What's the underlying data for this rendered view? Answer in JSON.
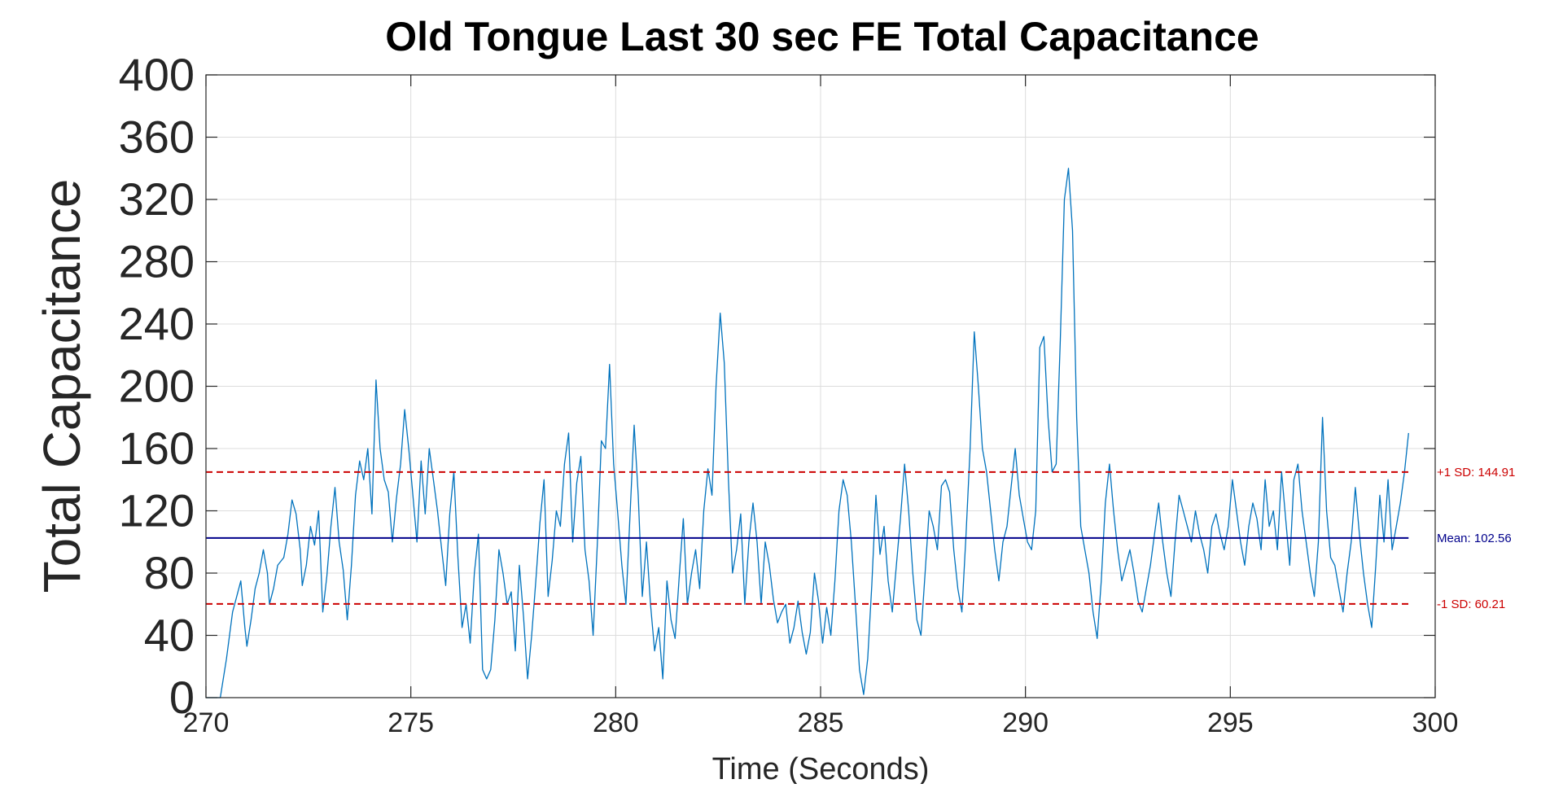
{
  "chart_data": {
    "type": "line",
    "title": "Old Tongue Last 30 sec FE Total Capacitance",
    "xlabel": "Time (Seconds)",
    "ylabel": "Total Capacitance",
    "xlim": [
      270,
      300
    ],
    "ylim": [
      0,
      400
    ],
    "xticks": [
      270,
      275,
      280,
      285,
      290,
      295,
      300
    ],
    "yticks": [
      0,
      40,
      80,
      120,
      160,
      200,
      240,
      280,
      320,
      360,
      400
    ],
    "grid": true,
    "series": [
      {
        "color": "#0072bd",
        "points": [
          [
            270.0,
            0
          ],
          [
            270.35,
            0
          ],
          [
            270.5,
            25
          ],
          [
            270.65,
            55
          ],
          [
            270.75,
            65
          ],
          [
            270.85,
            75
          ],
          [
            270.9,
            60
          ],
          [
            270.95,
            45
          ],
          [
            271.0,
            33
          ],
          [
            271.1,
            50
          ],
          [
            271.2,
            70
          ],
          [
            271.3,
            80
          ],
          [
            271.4,
            95
          ],
          [
            271.5,
            80
          ],
          [
            271.55,
            60
          ],
          [
            271.65,
            70
          ],
          [
            271.75,
            85
          ],
          [
            271.9,
            90
          ],
          [
            272.0,
            105
          ],
          [
            272.1,
            127
          ],
          [
            272.2,
            118
          ],
          [
            272.3,
            95
          ],
          [
            272.35,
            72
          ],
          [
            272.45,
            85
          ],
          [
            272.55,
            110
          ],
          [
            272.65,
            98
          ],
          [
            272.75,
            120
          ],
          [
            272.85,
            55
          ],
          [
            272.95,
            78
          ],
          [
            273.05,
            110
          ],
          [
            273.15,
            135
          ],
          [
            273.25,
            100
          ],
          [
            273.35,
            82
          ],
          [
            273.45,
            50
          ],
          [
            273.55,
            85
          ],
          [
            273.65,
            130
          ],
          [
            273.75,
            152
          ],
          [
            273.85,
            140
          ],
          [
            273.95,
            160
          ],
          [
            274.05,
            118
          ],
          [
            274.15,
            204
          ],
          [
            274.25,
            160
          ],
          [
            274.35,
            140
          ],
          [
            274.45,
            132
          ],
          [
            274.55,
            100
          ],
          [
            274.65,
            128
          ],
          [
            274.75,
            150
          ],
          [
            274.85,
            185
          ],
          [
            274.95,
            160
          ],
          [
            275.05,
            130
          ],
          [
            275.15,
            100
          ],
          [
            275.25,
            152
          ],
          [
            275.35,
            118
          ],
          [
            275.45,
            160
          ],
          [
            275.55,
            140
          ],
          [
            275.65,
            120
          ],
          [
            275.75,
            96
          ],
          [
            275.85,
            72
          ],
          [
            275.95,
            118
          ],
          [
            276.05,
            145
          ],
          [
            276.15,
            90
          ],
          [
            276.25,
            45
          ],
          [
            276.35,
            60
          ],
          [
            276.45,
            35
          ],
          [
            276.55,
            80
          ],
          [
            276.65,
            105
          ],
          [
            276.75,
            18
          ],
          [
            276.85,
            12
          ],
          [
            276.95,
            18
          ],
          [
            277.05,
            50
          ],
          [
            277.15,
            95
          ],
          [
            277.25,
            80
          ],
          [
            277.35,
            60
          ],
          [
            277.45,
            68
          ],
          [
            277.55,
            30
          ],
          [
            277.65,
            85
          ],
          [
            277.75,
            52
          ],
          [
            277.85,
            12
          ],
          [
            277.95,
            40
          ],
          [
            278.05,
            75
          ],
          [
            278.15,
            112
          ],
          [
            278.25,
            140
          ],
          [
            278.35,
            65
          ],
          [
            278.45,
            88
          ],
          [
            278.55,
            120
          ],
          [
            278.65,
            110
          ],
          [
            278.75,
            150
          ],
          [
            278.85,
            170
          ],
          [
            278.95,
            100
          ],
          [
            279.05,
            138
          ],
          [
            279.15,
            155
          ],
          [
            279.25,
            95
          ],
          [
            279.35,
            75
          ],
          [
            279.45,
            40
          ],
          [
            279.55,
            98
          ],
          [
            279.65,
            165
          ],
          [
            279.75,
            160
          ],
          [
            279.85,
            214
          ],
          [
            279.95,
            150
          ],
          [
            280.05,
            118
          ],
          [
            280.15,
            85
          ],
          [
            280.25,
            60
          ],
          [
            280.35,
            118
          ],
          [
            280.45,
            175
          ],
          [
            280.55,
            130
          ],
          [
            280.65,
            65
          ],
          [
            280.75,
            100
          ],
          [
            280.85,
            60
          ],
          [
            280.95,
            30
          ],
          [
            281.05,
            45
          ],
          [
            281.15,
            12
          ],
          [
            281.25,
            75
          ],
          [
            281.35,
            50
          ],
          [
            281.45,
            38
          ],
          [
            281.55,
            78
          ],
          [
            281.65,
            115
          ],
          [
            281.75,
            60
          ],
          [
            281.85,
            80
          ],
          [
            281.95,
            95
          ],
          [
            282.05,
            70
          ],
          [
            282.15,
            120
          ],
          [
            282.25,
            147
          ],
          [
            282.35,
            130
          ],
          [
            282.45,
            200
          ],
          [
            282.55,
            247
          ],
          [
            282.65,
            215
          ],
          [
            282.75,
            140
          ],
          [
            282.85,
            80
          ],
          [
            282.95,
            95
          ],
          [
            283.05,
            118
          ],
          [
            283.15,
            60
          ],
          [
            283.25,
            100
          ],
          [
            283.35,
            125
          ],
          [
            283.45,
            100
          ],
          [
            283.55,
            60
          ],
          [
            283.65,
            100
          ],
          [
            283.75,
            85
          ],
          [
            283.85,
            63
          ],
          [
            283.95,
            48
          ],
          [
            284.05,
            55
          ],
          [
            284.15,
            60
          ],
          [
            284.25,
            35
          ],
          [
            284.35,
            45
          ],
          [
            284.45,
            62
          ],
          [
            284.55,
            42
          ],
          [
            284.65,
            28
          ],
          [
            284.75,
            42
          ],
          [
            284.85,
            80
          ],
          [
            284.95,
            62
          ],
          [
            285.05,
            35
          ],
          [
            285.15,
            58
          ],
          [
            285.25,
            40
          ],
          [
            285.35,
            75
          ],
          [
            285.45,
            120
          ],
          [
            285.55,
            140
          ],
          [
            285.65,
            130
          ],
          [
            285.75,
            100
          ],
          [
            285.85,
            60
          ],
          [
            285.95,
            18
          ],
          [
            286.05,
            2
          ],
          [
            286.15,
            25
          ],
          [
            286.25,
            72
          ],
          [
            286.35,
            130
          ],
          [
            286.45,
            92
          ],
          [
            286.55,
            110
          ],
          [
            286.65,
            75
          ],
          [
            286.75,
            55
          ],
          [
            286.85,
            85
          ],
          [
            286.95,
            115
          ],
          [
            287.05,
            150
          ],
          [
            287.15,
            120
          ],
          [
            287.25,
            80
          ],
          [
            287.35,
            50
          ],
          [
            287.45,
            40
          ],
          [
            287.55,
            80
          ],
          [
            287.65,
            120
          ],
          [
            287.75,
            110
          ],
          [
            287.85,
            95
          ],
          [
            287.95,
            136
          ],
          [
            288.05,
            140
          ],
          [
            288.15,
            132
          ],
          [
            288.25,
            95
          ],
          [
            288.35,
            70
          ],
          [
            288.45,
            55
          ],
          [
            288.55,
            105
          ],
          [
            288.65,
            160
          ],
          [
            288.75,
            235
          ],
          [
            288.85,
            200
          ],
          [
            288.95,
            160
          ],
          [
            289.05,
            145
          ],
          [
            289.15,
            120
          ],
          [
            289.25,
            95
          ],
          [
            289.35,
            75
          ],
          [
            289.45,
            100
          ],
          [
            289.55,
            110
          ],
          [
            289.65,
            135
          ],
          [
            289.75,
            160
          ],
          [
            289.85,
            130
          ],
          [
            289.95,
            115
          ],
          [
            290.05,
            100
          ],
          [
            290.15,
            95
          ],
          [
            290.25,
            120
          ],
          [
            290.35,
            225
          ],
          [
            290.45,
            232
          ],
          [
            290.55,
            180
          ],
          [
            290.65,
            145
          ],
          [
            290.75,
            150
          ],
          [
            290.85,
            230
          ],
          [
            290.95,
            320
          ],
          [
            291.05,
            340
          ],
          [
            291.15,
            300
          ],
          [
            291.25,
            180
          ],
          [
            291.35,
            110
          ],
          [
            291.45,
            95
          ],
          [
            291.55,
            80
          ],
          [
            291.65,
            55
          ],
          [
            291.75,
            38
          ],
          [
            291.85,
            75
          ],
          [
            291.95,
            125
          ],
          [
            292.05,
            150
          ],
          [
            292.15,
            120
          ],
          [
            292.25,
            95
          ],
          [
            292.35,
            75
          ],
          [
            292.45,
            85
          ],
          [
            292.55,
            95
          ],
          [
            292.65,
            80
          ],
          [
            292.75,
            62
          ],
          [
            292.85,
            55
          ],
          [
            292.95,
            70
          ],
          [
            293.05,
            85
          ],
          [
            293.15,
            105
          ],
          [
            293.25,
            125
          ],
          [
            293.35,
            100
          ],
          [
            293.45,
            80
          ],
          [
            293.55,
            65
          ],
          [
            293.65,
            100
          ],
          [
            293.75,
            130
          ],
          [
            293.85,
            120
          ],
          [
            293.95,
            110
          ],
          [
            294.05,
            100
          ],
          [
            294.15,
            120
          ],
          [
            294.25,
            105
          ],
          [
            294.35,
            95
          ],
          [
            294.45,
            80
          ],
          [
            294.55,
            110
          ],
          [
            294.65,
            118
          ],
          [
            294.75,
            105
          ],
          [
            294.85,
            95
          ],
          [
            294.95,
            110
          ],
          [
            295.05,
            140
          ],
          [
            295.15,
            120
          ],
          [
            295.25,
            100
          ],
          [
            295.35,
            85
          ],
          [
            295.45,
            110
          ],
          [
            295.55,
            125
          ],
          [
            295.65,
            115
          ],
          [
            295.75,
            95
          ],
          [
            295.85,
            140
          ],
          [
            295.95,
            110
          ],
          [
            296.05,
            120
          ],
          [
            296.15,
            95
          ],
          [
            296.25,
            145
          ],
          [
            296.35,
            115
          ],
          [
            296.45,
            85
          ],
          [
            296.55,
            140
          ],
          [
            296.65,
            150
          ],
          [
            296.75,
            120
          ],
          [
            296.85,
            100
          ],
          [
            296.95,
            80
          ],
          [
            297.05,
            65
          ],
          [
            297.15,
            100
          ],
          [
            297.25,
            180
          ],
          [
            297.35,
            120
          ],
          [
            297.45,
            90
          ],
          [
            297.55,
            85
          ],
          [
            297.65,
            70
          ],
          [
            297.75,
            55
          ],
          [
            297.85,
            80
          ],
          [
            297.95,
            100
          ],
          [
            298.05,
            135
          ],
          [
            298.15,
            105
          ],
          [
            298.25,
            80
          ],
          [
            298.35,
            60
          ],
          [
            298.45,
            45
          ],
          [
            298.55,
            85
          ],
          [
            298.65,
            130
          ],
          [
            298.75,
            100
          ],
          [
            298.85,
            140
          ],
          [
            298.95,
            95
          ],
          [
            299.05,
            110
          ],
          [
            299.15,
            125
          ],
          [
            299.25,
            145
          ],
          [
            299.35,
            170
          ]
        ]
      }
    ],
    "reference_lines": [
      {
        "name": "+1 SD",
        "value": 144.91,
        "label": "+1 SD: 144.91",
        "color": "#cc0000",
        "style": "dashed"
      },
      {
        "name": "Mean",
        "value": 102.56,
        "label": "Mean: 102.56",
        "color": "#00008b",
        "style": "solid"
      },
      {
        "name": "-1 SD",
        "value": 60.21,
        "label": "-1 SD: 60.21",
        "color": "#cc0000",
        "style": "dashed"
      }
    ]
  }
}
